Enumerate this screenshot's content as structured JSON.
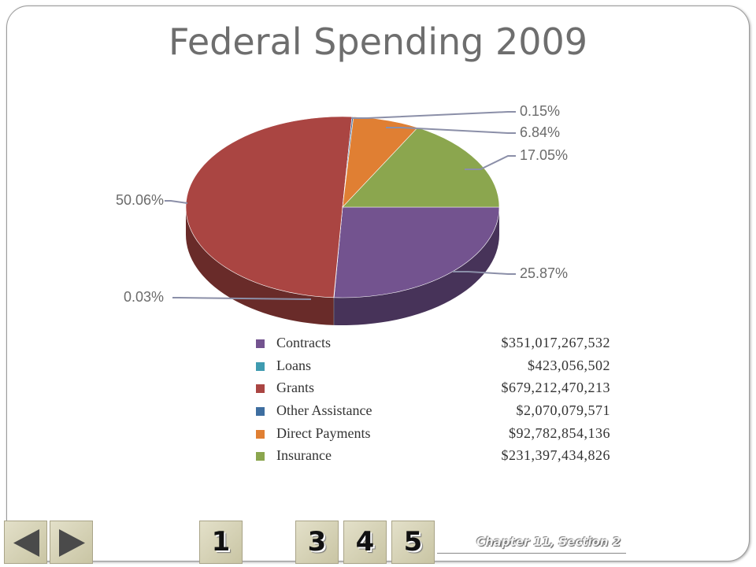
{
  "slide": {
    "title": "Federal Spending 2009",
    "footer": "Chapter 11, Section 2"
  },
  "navigation": {
    "prev_icon": "triangle-left-icon",
    "next_icon": "triangle-right-icon",
    "buttons": [
      "1",
      "3",
      "4",
      "5"
    ]
  },
  "chart_data": {
    "type": "pie",
    "style": "3d",
    "slices": [
      {
        "name": "Contracts",
        "amount": "$351,017,267,532",
        "percent_label": "25.87%",
        "percent": 25.87,
        "color": "#73538f"
      },
      {
        "name": "Loans",
        "amount": "$423,056,502",
        "percent_label": "0.03%",
        "percent": 0.03,
        "color": "#3f9bb0"
      },
      {
        "name": "Grants",
        "amount": "$679,212,470,213",
        "percent_label": "50.06%",
        "percent": 50.06,
        "color": "#aa4542"
      },
      {
        "name": "Other Assistance",
        "amount": "$2,070,079,571",
        "percent_label": "0.15%",
        "percent": 0.15,
        "color": "#3e6ea0"
      },
      {
        "name": "Direct Payments",
        "amount": "$92,782,854,136",
        "percent_label": "6.84%",
        "percent": 6.84,
        "color": "#e07f33"
      },
      {
        "name": "Insurance",
        "amount": "$231,397,434,826",
        "percent_label": "17.05%",
        "percent": 17.05,
        "color": "#8ba64e"
      }
    ]
  }
}
